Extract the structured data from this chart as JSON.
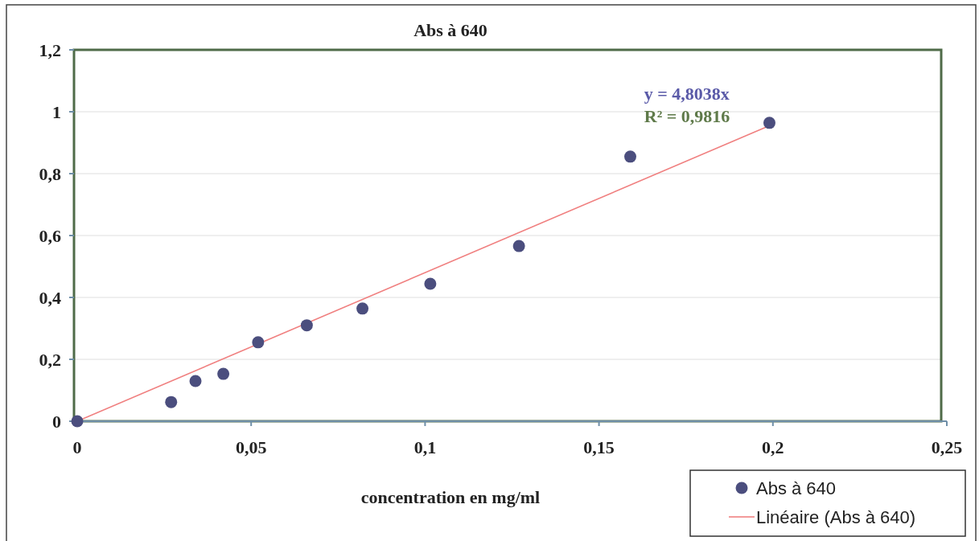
{
  "chart_data": {
    "type": "scatter",
    "title": "Abs à 640",
    "xlabel": "concentration en mg/ml",
    "xlim": [
      0,
      0.25
    ],
    "ylim": [
      0,
      1.2
    ],
    "xticks": [
      0,
      {
        "value": 0.05,
        "label": "0,05"
      },
      {
        "value": 0.1,
        "label": "0,1"
      },
      {
        "value": 0.15,
        "label": "0,15"
      },
      {
        "value": 0.2,
        "label": "0,2"
      },
      {
        "value": 0.25,
        "label": "0,25"
      }
    ],
    "yticks": [
      0,
      {
        "value": 0.2,
        "label": "0,2"
      },
      {
        "value": 0.4,
        "label": "0,4"
      },
      {
        "value": 0.6,
        "label": "0,6"
      },
      {
        "value": 0.8,
        "label": "0,8"
      },
      1,
      {
        "value": 1.2,
        "label": "1,2"
      }
    ],
    "grid": "y",
    "legend": "bottom right",
    "series": [
      {
        "name": "Abs à 640",
        "marker": "circle",
        "color": "#4b4e7e",
        "x": [
          0,
          0.027,
          0.034,
          0.042,
          0.052,
          0.066,
          0.082,
          0.1015,
          0.127,
          0.159,
          0.199
        ],
        "values": [
          0,
          0.062,
          0.13,
          0.153,
          0.255,
          0.31,
          0.364,
          0.444,
          0.566,
          0.855,
          0.964
        ]
      },
      {
        "name": "Linéaire (Abs à 640)",
        "type": "line",
        "color": "#f08080",
        "x": [
          0,
          0.2
        ],
        "values": [
          0,
          0.96
        ]
      }
    ],
    "annotations": [
      "y = 4,8038x",
      "R² = 0,9816"
    ]
  }
}
